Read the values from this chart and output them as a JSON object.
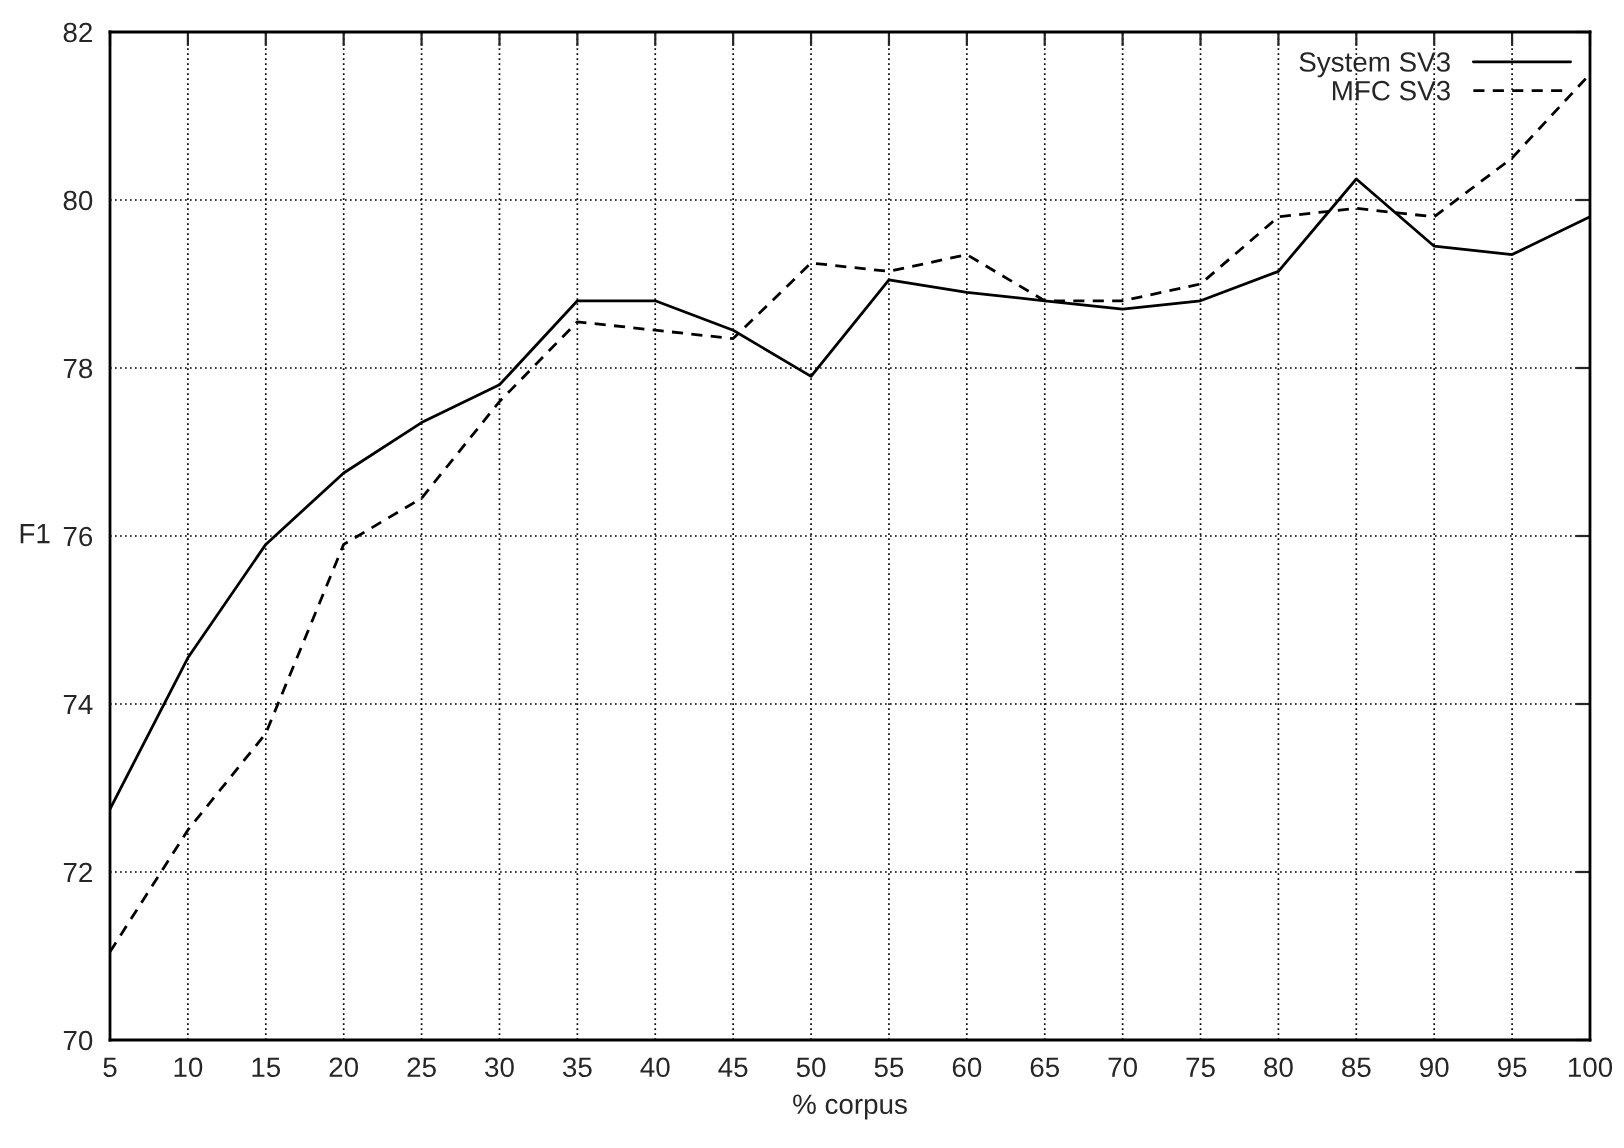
{
  "chart_data": {
    "type": "line",
    "xlabel": "% corpus",
    "ylabel": "F1",
    "x": [
      5,
      10,
      15,
      20,
      25,
      30,
      35,
      40,
      45,
      50,
      55,
      60,
      65,
      70,
      75,
      80,
      85,
      90,
      95,
      100
    ],
    "series": [
      {
        "name": "System SV3",
        "color": "#000000",
        "line_style": "solid",
        "values": [
          72.75,
          74.55,
          75.9,
          76.75,
          77.35,
          77.8,
          78.8,
          78.8,
          78.45,
          77.9,
          79.05,
          78.9,
          78.8,
          78.7,
          78.8,
          79.15,
          80.25,
          79.45,
          79.35,
          79.8
        ]
      },
      {
        "name": "MFC SV3",
        "color": "#000000",
        "line_style": "dashed",
        "values": [
          71.05,
          72.5,
          73.65,
          75.9,
          76.45,
          77.6,
          78.55,
          78.45,
          78.35,
          79.25,
          79.15,
          79.35,
          78.8,
          78.8,
          79.0,
          79.8,
          79.9,
          79.8,
          80.5,
          81.5
        ]
      }
    ],
    "xlim": [
      5,
      100
    ],
    "xticks": [
      5,
      10,
      15,
      20,
      25,
      30,
      35,
      40,
      45,
      50,
      55,
      60,
      65,
      70,
      75,
      80,
      85,
      90,
      95,
      100
    ],
    "ylim": [
      70,
      82
    ],
    "yticks": [
      70,
      72,
      74,
      76,
      78,
      80,
      82
    ],
    "grid": true,
    "legend": "top right",
    "marker": "none"
  }
}
